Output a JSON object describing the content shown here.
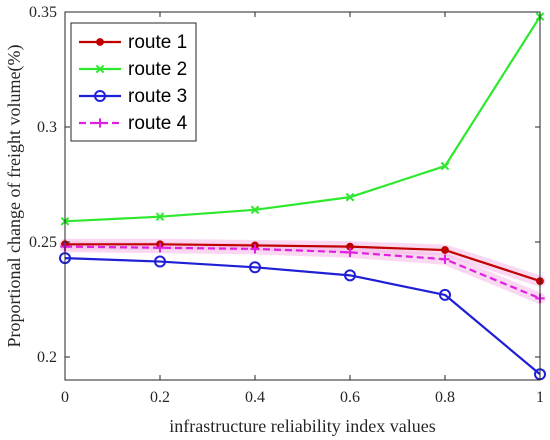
{
  "chart_data": {
    "type": "line",
    "xlabel": "infrastructure reliability index values",
    "ylabel": "Proportional change of freight volume(%)",
    "xlim": [
      0,
      1
    ],
    "ylim": [
      0.19,
      0.35
    ],
    "xticks": [
      "0",
      "0.2",
      "0.4",
      "0.6",
      "0.8",
      "1"
    ],
    "yticks": [
      "0.2",
      "0.25",
      "0.3",
      "0.35"
    ],
    "grid": false,
    "legend_position": "top-left",
    "x": [
      0,
      0.2,
      0.4,
      0.6,
      0.8,
      1.0
    ],
    "series": [
      {
        "name": "route 1",
        "color": "#c00000",
        "marker": "dot",
        "line_style": "solid",
        "values": [
          0.249,
          0.249,
          0.2485,
          0.248,
          0.2465,
          0.233
        ]
      },
      {
        "name": "route 2",
        "color": "#2ee82e",
        "marker": "x",
        "line_style": "solid",
        "values": [
          0.259,
          0.261,
          0.264,
          0.2695,
          0.283,
          0.348
        ]
      },
      {
        "name": "route 3",
        "color": "#1f1fd6",
        "marker": "circle",
        "line_style": "solid",
        "values": [
          0.243,
          0.2415,
          0.239,
          0.2355,
          0.227,
          0.1925
        ]
      },
      {
        "name": "route 4",
        "color": "#e020e0",
        "marker": "plus",
        "line_style": "dashed",
        "values": [
          0.248,
          0.2475,
          0.247,
          0.2455,
          0.2425,
          0.2255
        ]
      }
    ]
  }
}
